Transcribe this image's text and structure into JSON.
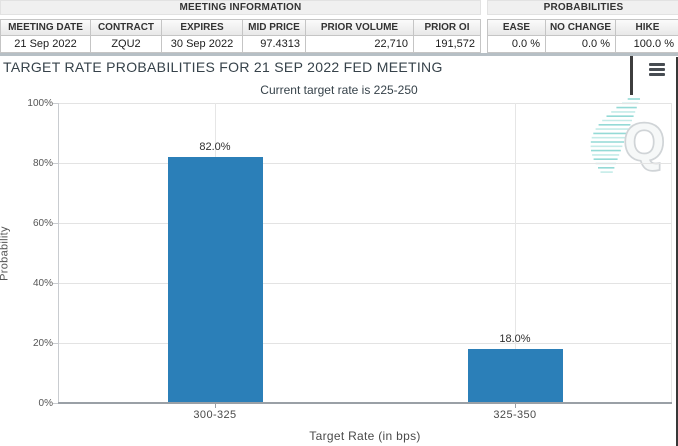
{
  "meeting_info": {
    "header": "MEETING INFORMATION",
    "columns": [
      "MEETING DATE",
      "CONTRACT",
      "EXPIRES",
      "MID PRICE",
      "PRIOR VOLUME",
      "PRIOR OI"
    ],
    "values": [
      "21 Sep 2022",
      "ZQU2",
      "30 Sep 2022",
      "97.4313",
      "22,710",
      "191,572"
    ]
  },
  "probabilities": {
    "header": "PROBABILITIES",
    "columns": [
      "EASE",
      "NO CHANGE",
      "HIKE"
    ],
    "values": [
      "0.0 %",
      "0.0 %",
      "100.0 %"
    ]
  },
  "chart_data": {
    "type": "bar",
    "title": "TARGET RATE PROBABILITIES FOR 21 SEP 2022 FED MEETING",
    "subtitle": "Current target rate is 225-250",
    "categories": [
      "300-325",
      "325-350"
    ],
    "values": [
      82.0,
      18.0
    ],
    "value_labels": [
      "82.0%",
      "18.0%"
    ],
    "xlabel": "Target Rate (in bps)",
    "ylabel": "Probability",
    "ylim": [
      0,
      100
    ],
    "yticks": [
      "0%",
      "20%",
      "40%",
      "60%",
      "80%",
      "100%"
    ],
    "grid": true,
    "legend": false,
    "bar_color": "#2b7fb8"
  },
  "icons": {
    "menu_icon": "hamburger-menu",
    "watermark_letter": "Q"
  },
  "colors": {
    "bar": "#2b7fb8",
    "title_text": "#36424a",
    "axis_line": "#9aa0a6",
    "gridline": "#e3e3e3"
  }
}
